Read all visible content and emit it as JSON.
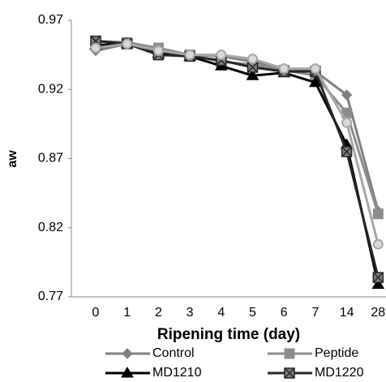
{
  "chart_data": {
    "type": "line",
    "x_label": "Ripening time (day)",
    "y_label": "aw",
    "categories": [
      "0",
      "1",
      "2",
      "3",
      "4",
      "5",
      "6",
      "7",
      "14",
      "28"
    ],
    "ylim": [
      0.77,
      0.97
    ],
    "yticks": [
      0.77,
      0.82,
      0.87,
      0.92,
      0.97
    ],
    "series": [
      {
        "name": "Control",
        "color": "#7f7f7f",
        "marker": "diamond",
        "values": [
          0.948,
          0.953,
          0.946,
          0.945,
          0.944,
          0.94,
          0.935,
          0.933,
          0.916,
          0.832
        ]
      },
      {
        "name": "Peptide",
        "color": "#8c8c8c",
        "marker": "square",
        "values": [
          0.955,
          0.954,
          0.95,
          0.945,
          0.94,
          0.938,
          0.934,
          0.93,
          0.903,
          0.83
        ]
      },
      {
        "name": "MD1210",
        "color": "#000000",
        "marker": "triangle",
        "values": [
          0.952,
          0.953,
          0.946,
          0.944,
          0.937,
          0.93,
          0.932,
          0.925,
          0.88,
          0.779
        ]
      },
      {
        "name": "MD1220",
        "color": "#262626",
        "marker": "xsquare",
        "values": [
          0.955,
          0.953,
          0.945,
          0.944,
          0.941,
          0.936,
          0.933,
          0.933,
          0.875,
          0.784
        ]
      },
      {
        "color": "#a6a6a6",
        "marker": "circle",
        "values": [
          0.95,
          0.953,
          0.948,
          0.945,
          0.945,
          0.942,
          0.935,
          0.935,
          0.896,
          0.808
        ]
      }
    ]
  }
}
